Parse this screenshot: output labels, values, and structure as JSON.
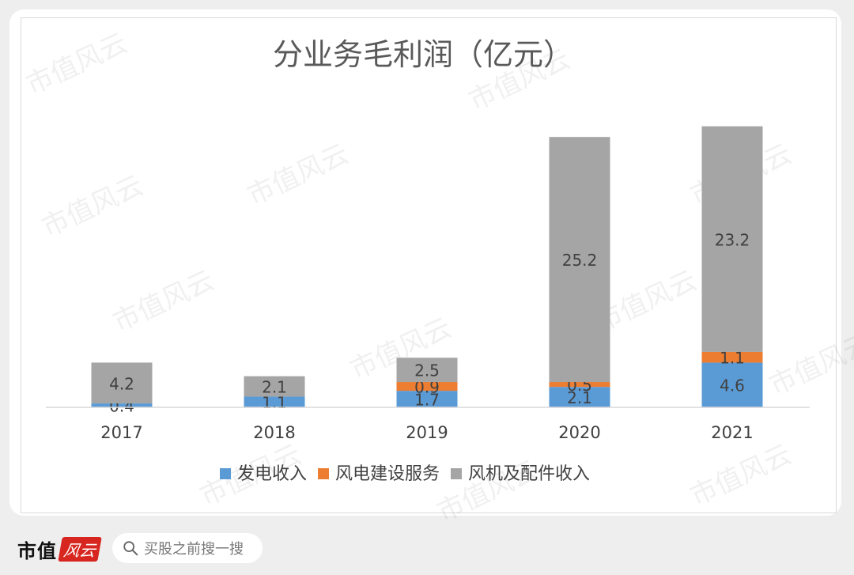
{
  "chart_data": {
    "type": "bar",
    "stacked": true,
    "title": "分业务毛利润（亿元）",
    "categories": [
      "2017",
      "2018",
      "2019",
      "2020",
      "2021"
    ],
    "series": [
      {
        "name": "发电收入",
        "color": "#5b9bd5",
        "values": [
          0.4,
          1.1,
          1.7,
          2.1,
          4.6
        ],
        "labels": [
          "0.4",
          "1.1",
          "1.7",
          "2.1",
          "4.6"
        ]
      },
      {
        "name": "风电建设服务",
        "color": "#ed7d31",
        "values": [
          0,
          0,
          0.9,
          0.5,
          1.1
        ],
        "labels": [
          "",
          "",
          "0.9",
          "0.5",
          "1.1"
        ]
      },
      {
        "name": "风机及配件收入",
        "color": "#a5a5a5",
        "values": [
          4.2,
          2.1,
          2.5,
          25.2,
          23.2
        ],
        "labels": [
          "4.2",
          "2.1",
          "2.5",
          "25.2",
          "23.2"
        ]
      }
    ],
    "legend_position": "bottom",
    "grid": false,
    "ylim": [
      0,
      30
    ]
  },
  "watermark": "市值风云",
  "footer": {
    "logo_main": "市值",
    "logo_seal": "风云",
    "search_text": "买股之前搜一搜",
    "search_icon": "search-icon"
  }
}
